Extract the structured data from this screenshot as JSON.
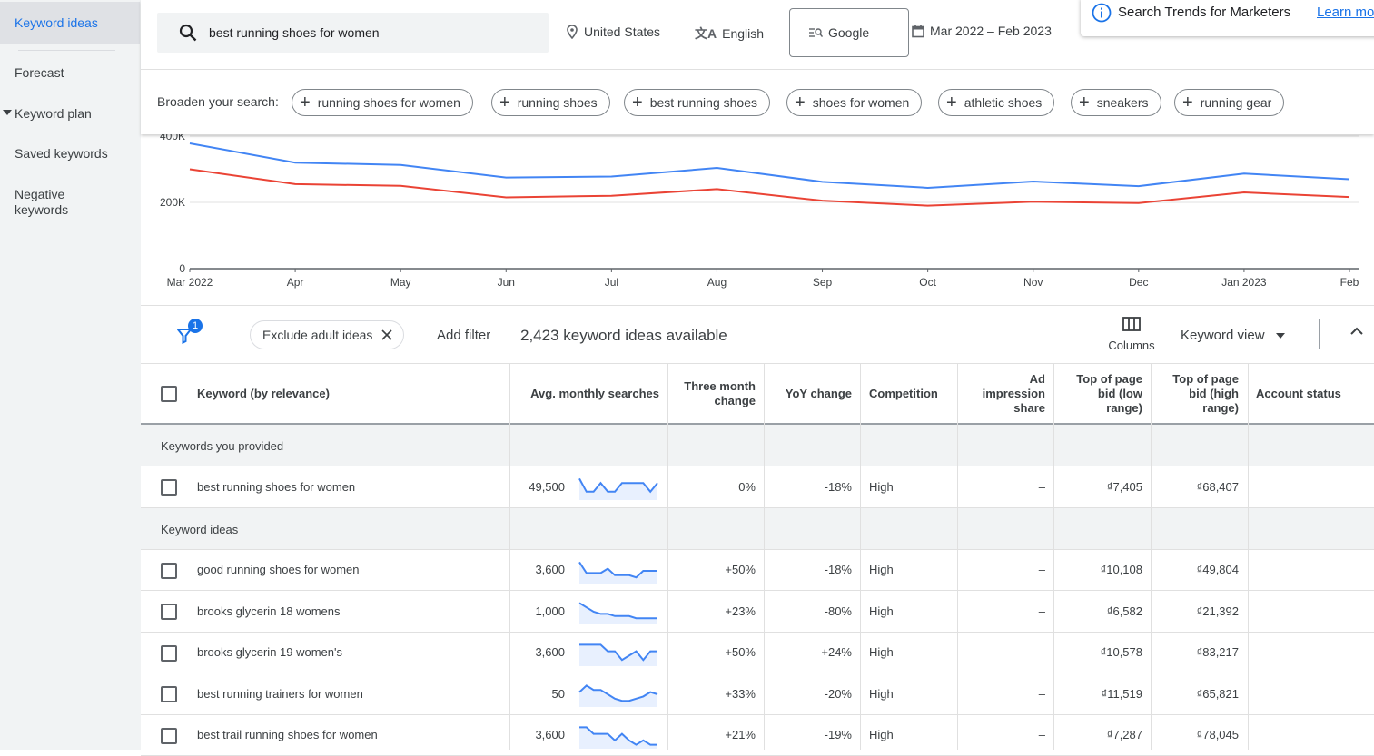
{
  "sidebar": {
    "items": [
      {
        "label": "Keyword ideas",
        "active": true
      },
      {
        "label": "Forecast"
      },
      {
        "label": "Keyword plan"
      },
      {
        "label": "Saved keywords"
      },
      {
        "label": "Negative keywords"
      }
    ]
  },
  "search": {
    "query": "best running shoes for women",
    "location": "United States",
    "language": "English",
    "network": "Google",
    "date_range": "Mar 2022 – Feb 2023"
  },
  "notice": {
    "text": "Search Trends for Marketers",
    "link": "Learn more"
  },
  "broaden": {
    "label": "Broaden your search:",
    "chips": [
      "running shoes for women",
      "running shoes",
      "best running shoes",
      "shoes for women",
      "athletic shoes",
      "sneakers",
      "running gear"
    ]
  },
  "chart_data": {
    "type": "line",
    "x": [
      "Mar 2022",
      "Apr",
      "May",
      "Jun",
      "Jul",
      "Aug",
      "Sep",
      "Oct",
      "Nov",
      "Dec",
      "Jan 2023",
      "Feb"
    ],
    "ylim": [
      0,
      400000
    ],
    "yticks": [
      "0",
      "200K",
      "400K"
    ],
    "series": [
      {
        "color": "#4285f4",
        "values": [
          378000,
          320000,
          313000,
          275000,
          278000,
          304000,
          262000,
          244000,
          263000,
          249000,
          287000,
          270000
        ]
      },
      {
        "color": "#ea4335",
        "values": [
          300000,
          255000,
          250000,
          215000,
          220000,
          240000,
          205000,
          190000,
          202000,
          198000,
          230000,
          216000
        ]
      }
    ],
    "grid": true
  },
  "filterbar": {
    "filter_count": "1",
    "exclude_chip": "Exclude adult ideas",
    "add_filter": "Add filter",
    "available": "2,423 keyword ideas available",
    "columns": "Columns",
    "keyword_view": "Keyword view"
  },
  "table": {
    "headers": {
      "keyword": "Keyword (by relevance)",
      "avg": "Avg. monthly searches",
      "three_month": "Three month change",
      "yoy": "YoY change",
      "competition": "Competition",
      "impression": "Ad impression share",
      "bid_low": "Top of page bid (low range)",
      "bid_high": "Top of page bid (high range)",
      "status": "Account status"
    },
    "provided_label": "Keywords you provided",
    "ideas_label": "Keyword ideas",
    "provided": [
      {
        "keyword": "best running shoes for women",
        "avg": "49,500",
        "three": "0%",
        "yoy": "-18%",
        "comp": "High",
        "imp": "–",
        "low": "₫7,405",
        "high": "₫68,407",
        "spark": [
          9,
          3,
          3,
          7,
          3,
          3,
          7,
          7,
          7,
          7,
          3,
          7
        ]
      }
    ],
    "ideas": [
      {
        "keyword": "good running shoes for women",
        "avg": "3,600",
        "three": "+50%",
        "yoy": "-18%",
        "comp": "High",
        "imp": "–",
        "low": "₫10,108",
        "high": "₫49,804",
        "spark": [
          9,
          4,
          4,
          4,
          6,
          3,
          3,
          3,
          2,
          5,
          5,
          5
        ]
      },
      {
        "keyword": "brooks glycerin 18 womens",
        "avg": "1,000",
        "three": "+23%",
        "yoy": "-80%",
        "comp": "High",
        "imp": "–",
        "low": "₫6,582",
        "high": "₫21,392",
        "spark": [
          9,
          7,
          5,
          4,
          4,
          3,
          3,
          3,
          2,
          2,
          2,
          2
        ]
      },
      {
        "keyword": "brooks glycerin 19 women's",
        "avg": "3,600",
        "three": "+50%",
        "yoy": "+24%",
        "comp": "High",
        "imp": "–",
        "low": "₫10,578",
        "high": "₫83,217",
        "spark": [
          9,
          9,
          9,
          9,
          6,
          6,
          2,
          4,
          6,
          2,
          6,
          6
        ]
      },
      {
        "keyword": "best running trainers for women",
        "avg": "50",
        "three": "+33%",
        "yoy": "-20%",
        "comp": "High",
        "imp": "–",
        "low": "₫11,519",
        "high": "₫65,821",
        "spark": [
          6,
          9,
          7,
          7,
          5,
          3,
          2,
          2,
          3,
          4,
          6,
          5
        ]
      },
      {
        "keyword": "best trail running shoes for women",
        "avg": "3,600",
        "three": "+21%",
        "yoy": "-19%",
        "comp": "High",
        "imp": "–",
        "low": "₫7,287",
        "high": "₫78,045",
        "spark": [
          9,
          9,
          6,
          6,
          6,
          3,
          6,
          3,
          1,
          3,
          1,
          1
        ]
      }
    ]
  }
}
